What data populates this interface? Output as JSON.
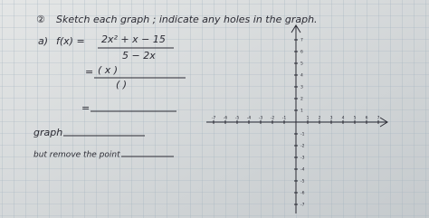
{
  "header": {
    "number": "②",
    "instruction": "Sketch each graph ; indicate any holes in the graph."
  },
  "problem": {
    "label": "a)",
    "function": "f(x) =",
    "numerator": "2x² + x − 15",
    "denominator": "5 − 2x",
    "equals": "=",
    "step_numerator": "(      x          )",
    "step_denominator": "(         )",
    "graph_label": "graph",
    "remove_label": "but remove the point"
  },
  "axes": {
    "x_labels": [
      "-7",
      "-6",
      "-5",
      "-4",
      "-3",
      "-2",
      "-1",
      "1",
      "2",
      "3",
      "4",
      "5",
      "6",
      "7"
    ],
    "y_labels": [
      "7",
      "6",
      "5",
      "4",
      "3",
      "2",
      "1",
      "-1",
      "-2",
      "-3",
      "-4",
      "-5",
      "-6",
      "-7"
    ]
  }
}
